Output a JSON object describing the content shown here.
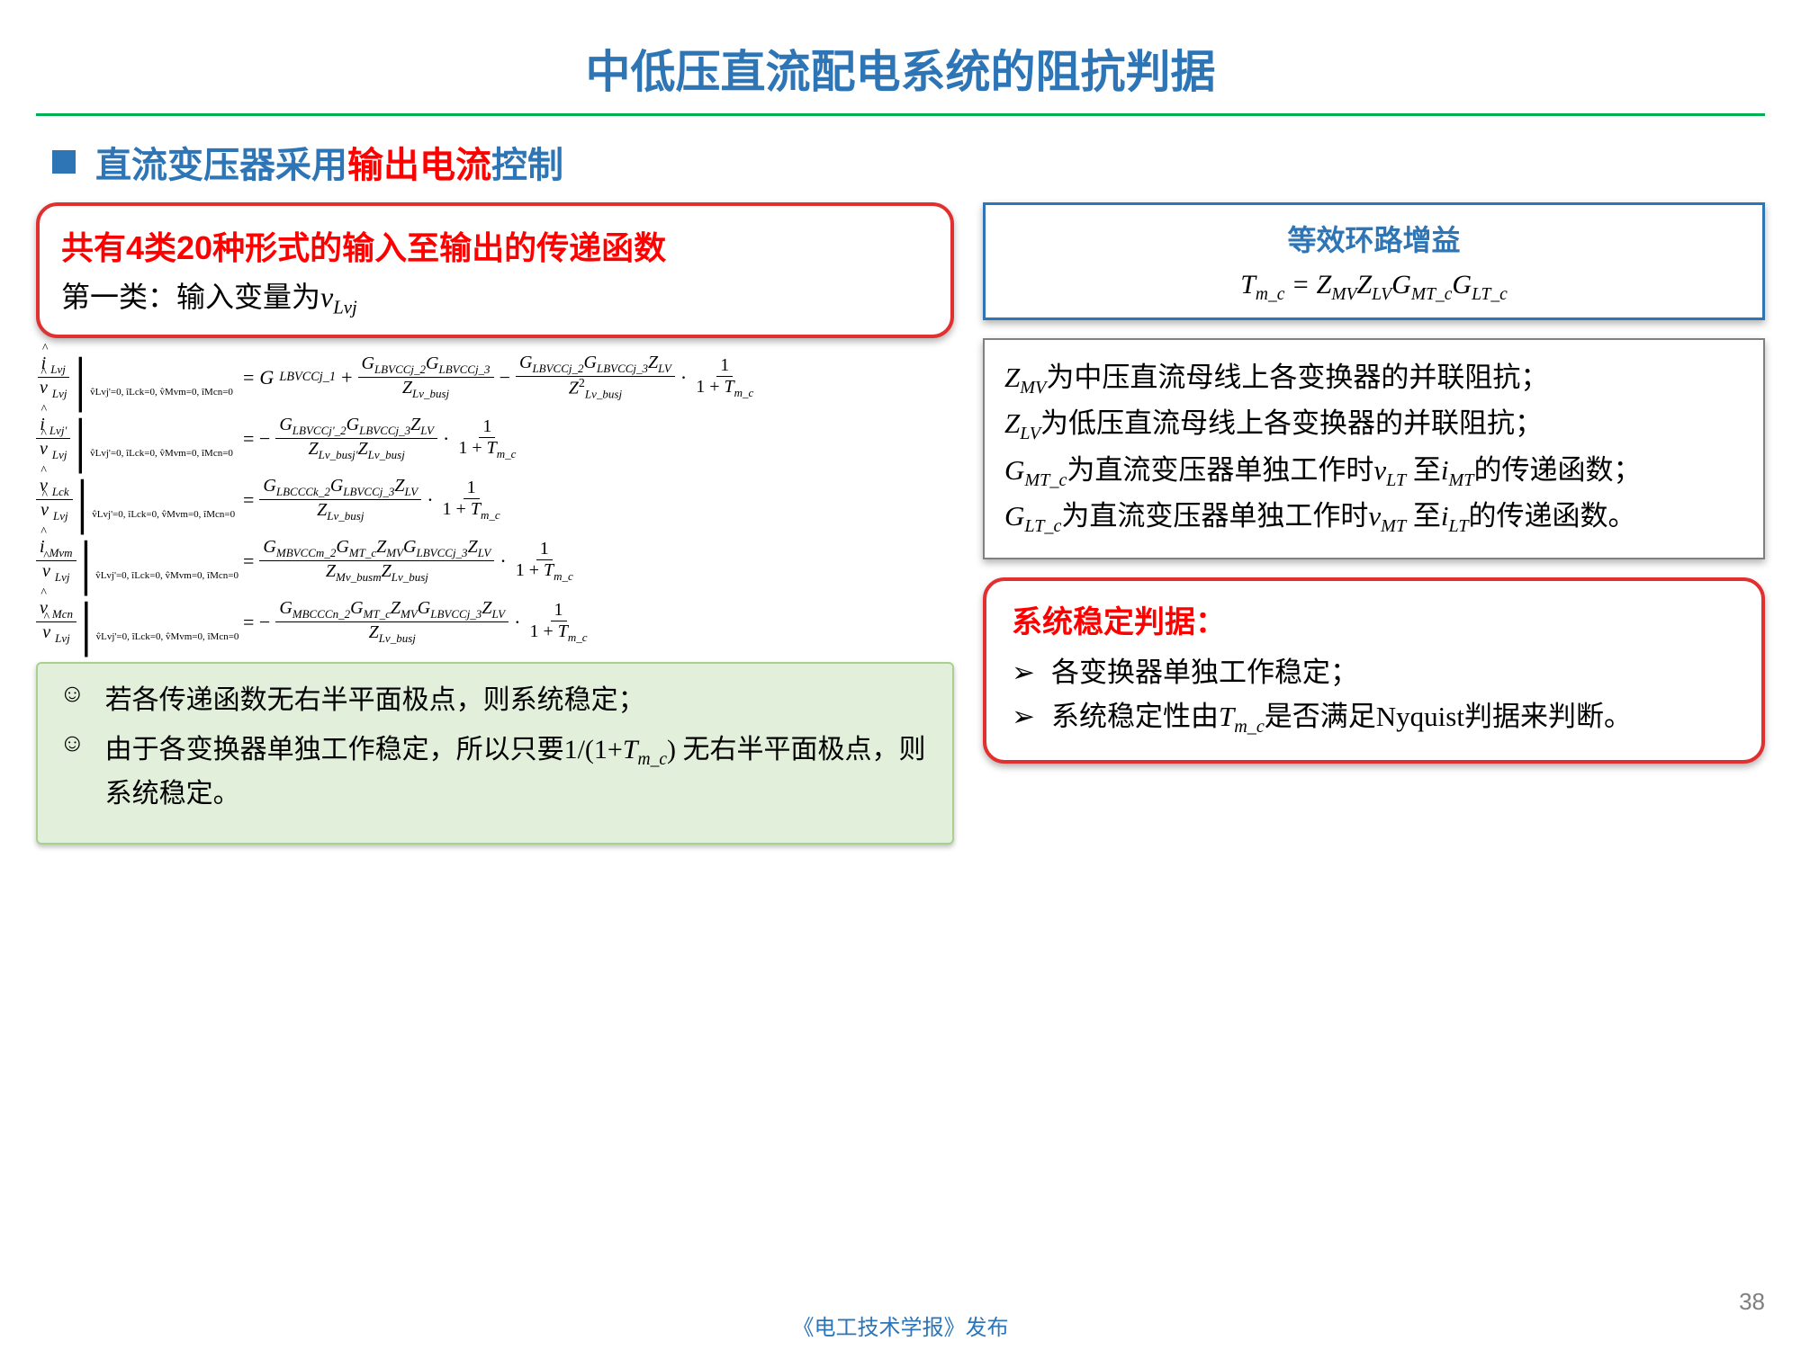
{
  "title": "中低压直流配电系统的阻抗判据",
  "subtitle": {
    "pre": "直流变压器采用",
    "highlight": "输出电流",
    "post": "控制"
  },
  "red_box": {
    "line1": "共有4类20种形式的输入至输出的传递函数",
    "line2_pre": "第一类：输入变量为",
    "line2_var": "v",
    "line2_sub": "Lvj"
  },
  "blue_box": {
    "label": "等效环路增益",
    "eq_lhs": "T",
    "eq_lhs_sub": "m_c",
    "eq_rhs": " = Z",
    "z1_sub": "MV",
    "z2": "Z",
    "z2_sub": "LV",
    "g1": "G",
    "g1_sub": "MT_c",
    "g2": "G",
    "g2_sub": "LT_c"
  },
  "gray_box": {
    "l1a": "Z",
    "l1a_sub": "MV",
    "l1b": "为中压直流母线上各变换器的并联阻抗；",
    "l2a": "Z",
    "l2a_sub": "LV",
    "l2b": "为低压直流母线上各变换器的并联阻抗；",
    "l3a": "G",
    "l3a_sub": "MT_c",
    "l3b": "为直流变压器单独工作时",
    "l3c": "v",
    "l3c_sub": "LT",
    "l3d": " 至",
    "l3e": "i",
    "l3e_sub": "MT",
    "l3f": "的传递函数；",
    "l4a": "G",
    "l4a_sub": "LT_c",
    "l4b": "为直流变压器单独工作时",
    "l4c": "v",
    "l4c_sub": "MT",
    "l4d": " 至",
    "l4e": "i",
    "l4e_sub": "LT",
    "l4f": "的传递函数。"
  },
  "green_box": {
    "i1": "若各传递函数无右半平面极点，则系统稳定；",
    "i2_pre": "由于各变换器单独工作稳定，所以只要1/(1+",
    "i2_var": "T",
    "i2_sub": "m_c",
    "i2_post": ") 无右半平面极点，则系统稳定。"
  },
  "stab_box": {
    "hdr": "系统稳定判据：",
    "r1": "各变换器单独工作稳定；",
    "r2_pre": "系统稳定性由",
    "r2_var": "T",
    "r2_sub": "m_c",
    "r2_post": "是否满足Nyquist判据来判断。"
  },
  "conditions": {
    "c1": "v̂Lvj'=0, îLck=0, v̂Mvm=0, îMcn=0"
  },
  "eqs": {
    "e1": {
      "num_l": "i",
      "num_l_sub": "Lvj",
      "den_l": "v",
      "den_l_sub": "Lvj",
      "t1": "G",
      "t1_sub": "LBVCCj_1",
      "f1_num_a": "G",
      "f1_num_a_sub": "LBVCCj_2",
      "f1_num_b": "G",
      "f1_num_b_sub": "LBVCCj_3",
      "f1_den": "Z",
      "f1_den_sub": "Lv_busj",
      "f2_num_a": "G",
      "f2_num_a_sub": "LBVCCj_2",
      "f2_num_b": "G",
      "f2_num_b_sub": "LBVCCj_3",
      "f2_num_c": "Z",
      "f2_num_c_sub": "LV",
      "f2_den": "Z",
      "f2_den_sup": "2",
      "f2_den_sub": "Lv_busj"
    },
    "e2": {
      "num_l": "i",
      "num_l_sub": "Lvj'",
      "den_l": "v",
      "den_l_sub": "Lvj",
      "n_a": "G",
      "n_a_sub": "LBVCCj'_2",
      "n_b": "G",
      "n_b_sub": "LBVCCj_3",
      "n_c": "Z",
      "n_c_sub": "LV",
      "d_a": "Z",
      "d_a_sub": "Lv_busj'",
      "d_b": "Z",
      "d_b_sub": "Lv_busj"
    },
    "e3": {
      "num_l": "v",
      "num_l_sub": "Lck",
      "den_l": "v",
      "den_l_sub": "Lvj",
      "n_a": "G",
      "n_a_sub": "LBCCCk_2",
      "n_b": "G",
      "n_b_sub": "LBVCCj_3",
      "n_c": "Z",
      "n_c_sub": "LV",
      "d_a": "Z",
      "d_a_sub": "Lv_busj"
    },
    "e4": {
      "num_l": "i",
      "num_l_sub": "Mvm",
      "den_l": "v",
      "den_l_sub": "Lvj",
      "n_a": "G",
      "n_a_sub": "MBVCCm_2",
      "n_b": "G",
      "n_b_sub": "MT_c",
      "n_c": "Z",
      "n_c_sub": "MV",
      "n_d": "G",
      "n_d_sub": "LBVCCj_3",
      "n_e": "Z",
      "n_e_sub": "LV",
      "d_a": "Z",
      "d_a_sub": "Mv_busm",
      "d_b": "Z",
      "d_b_sub": "Lv_busj"
    },
    "e5": {
      "num_l": "v",
      "num_l_sub": "Mcn",
      "den_l": "v",
      "den_l_sub": "Lvj",
      "n_a": "G",
      "n_a_sub": "MBCCCn_2",
      "n_b": "G",
      "n_b_sub": "MT_c",
      "n_c": "Z",
      "n_c_sub": "MV",
      "n_d": "G",
      "n_d_sub": "LBVCCj_3",
      "n_e": "Z",
      "n_e_sub": "LV",
      "d_a": "Z",
      "d_a_sub": "Lv_busj"
    },
    "loop": {
      "n": "1",
      "d_pre": "1 + ",
      "d_var": "T",
      "d_sub": "m_c"
    }
  },
  "footer": "《电工技术学报》发布",
  "pagenum": "38",
  "colors": {
    "title_blue": "#2e75b6",
    "green_rule": "#00b050",
    "red": "#ff0000",
    "box_red": "#e03030",
    "green_bg": "#e2efda",
    "green_border": "#a9d08e",
    "gray_border": "#808080",
    "page_gray": "#7f7f7f"
  }
}
